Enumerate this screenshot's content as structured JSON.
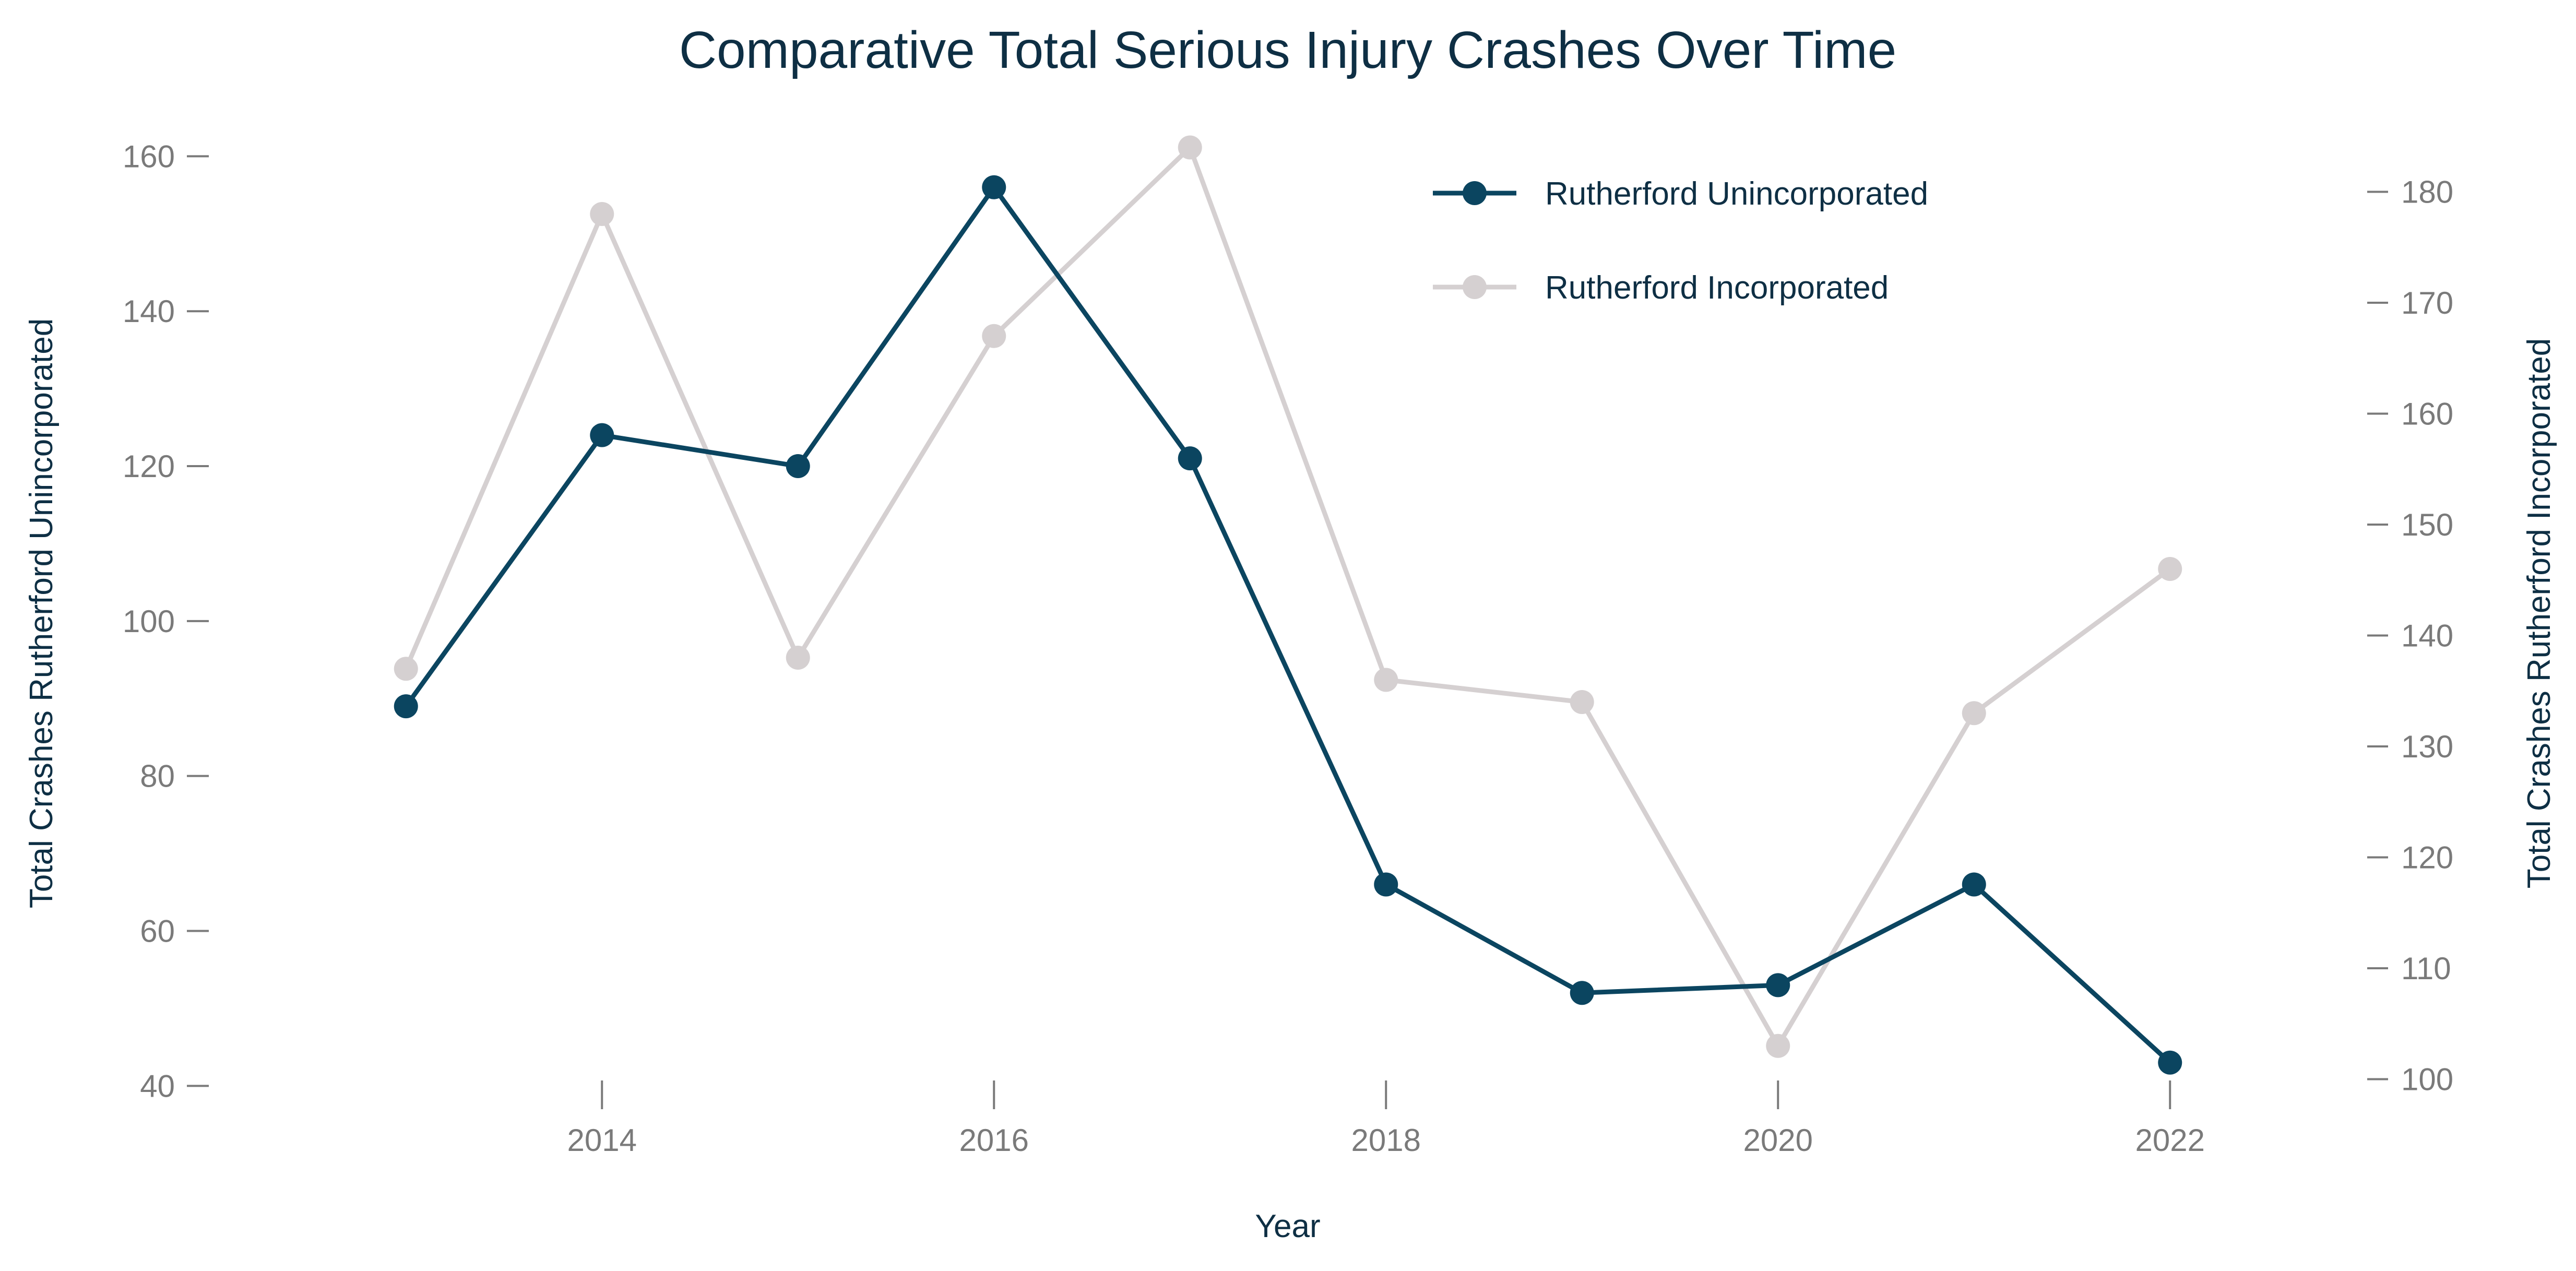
{
  "chart_data": {
    "type": "line",
    "title": "Comparative Total Serious Injury Crashes Over Time",
    "xlabel": "Year",
    "ylabel_left": "Total Crashes Rutherford Unincorporated",
    "ylabel_right": "Total Crashes Rutherford Incorporated",
    "x": [
      2013,
      2014,
      2015,
      2016,
      2017,
      2018,
      2019,
      2020,
      2021,
      2022
    ],
    "x_ticks": [
      2014,
      2016,
      2018,
      2020,
      2022
    ],
    "x_tick_labels": [
      "2014",
      "2016",
      "2018",
      "2020",
      "2022"
    ],
    "xlim": [
      2012.5,
      2022.5
    ],
    "ylim_left": [
      38,
      164
    ],
    "ylim_right": [
      98,
      186
    ],
    "y_ticks_left": [
      40,
      60,
      80,
      100,
      120,
      140,
      160
    ],
    "y_tick_labels_left": [
      "40",
      "60",
      "80",
      "100",
      "120",
      "140",
      "160"
    ],
    "y_ticks_right": [
      100,
      110,
      120,
      130,
      140,
      150,
      160,
      170,
      180
    ],
    "y_tick_labels_right": [
      "100",
      "110",
      "120",
      "130",
      "140",
      "150",
      "160",
      "170",
      "180"
    ],
    "grid": false,
    "legend_position": "top-right",
    "series": [
      {
        "name": "Rutherford Unincorporated",
        "axis": "left",
        "color": "#0b4560",
        "values": [
          89,
          124,
          120,
          156,
          121,
          66,
          52,
          53,
          66,
          43
        ]
      },
      {
        "name": "Rutherford Incorporated",
        "axis": "right",
        "color": "#d5d0d1",
        "values": [
          137,
          178,
          138,
          167,
          184,
          136,
          134,
          103,
          133,
          146
        ]
      }
    ]
  }
}
